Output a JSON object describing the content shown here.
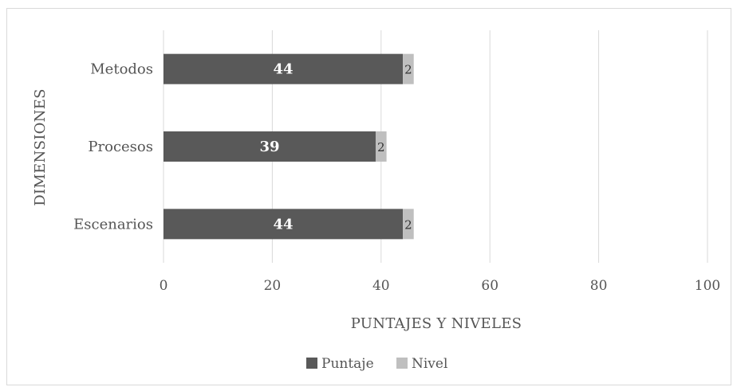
{
  "chart_data": {
    "type": "bar",
    "orientation": "horizontal",
    "stacked": true,
    "categories": [
      "Metodos",
      "Procesos",
      "Escenarios"
    ],
    "series": [
      {
        "name": "Puntaje",
        "values": [
          44,
          39,
          44
        ],
        "color": "#595959"
      },
      {
        "name": "Nivel",
        "values": [
          2,
          2,
          2
        ],
        "color": "#bfbfbf"
      }
    ],
    "xlabel": "PUNTAJES Y NIVELES",
    "ylabel": "DIMENSIONES",
    "xlim": [
      0,
      100
    ],
    "xticks": [
      0,
      20,
      40,
      60,
      80,
      100
    ],
    "grid": "vertical",
    "legend_position": "bottom"
  }
}
